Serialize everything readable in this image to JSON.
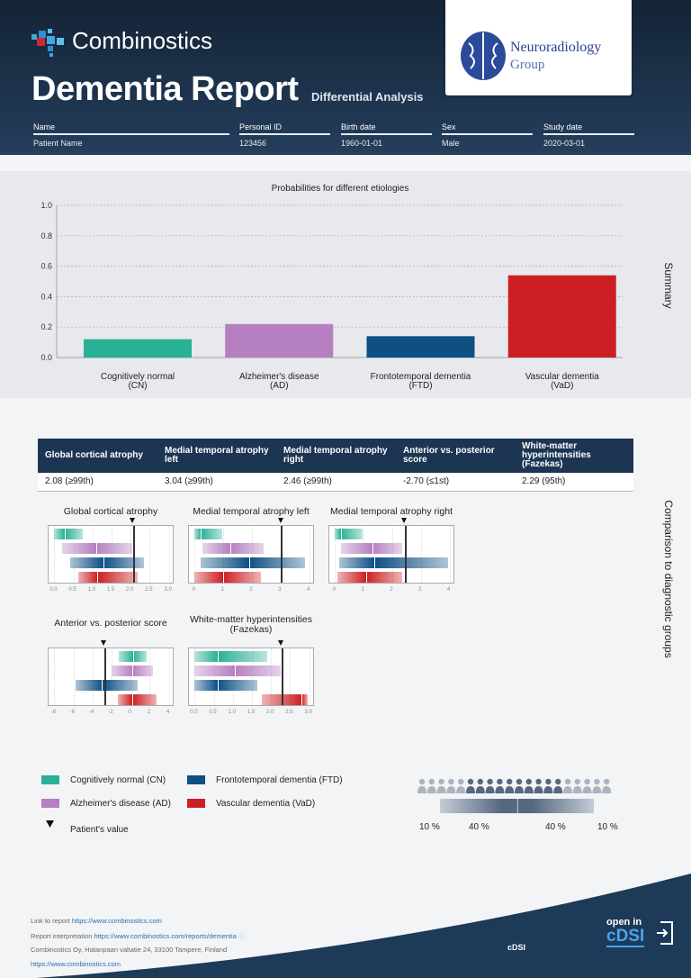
{
  "header": {
    "brand": "Combinostics",
    "title": "Dementia Report",
    "subtitle": "Differential Analysis",
    "partner": {
      "line1": "Neuroradiology",
      "line2": "Group"
    },
    "fields": [
      {
        "label": "Name",
        "value": "Patient Name"
      },
      {
        "label": "Personal ID",
        "value": "123456"
      },
      {
        "label": "Birth date",
        "value": "1960-01-01"
      },
      {
        "label": "Sex",
        "value": "Male"
      },
      {
        "label": "Study date",
        "value": "2020-03-01"
      }
    ]
  },
  "summary": {
    "side_label": "Summary"
  },
  "chart_data": [
    {
      "type": "bar",
      "title": "Probabilities for different etiologies",
      "categories": [
        "Cognitively normal\n(CN)",
        "Alzheimer's disease\n(AD)",
        "Frontotemporal dementia\n(FTD)",
        "Vascular dementia\n(VaD)"
      ],
      "values": [
        0.12,
        0.22,
        0.14,
        0.54
      ],
      "colors": [
        "#2ab094",
        "#b57fc1",
        "#0e4f84",
        "#cc1f24"
      ],
      "ylim": [
        0,
        1.0
      ],
      "yticks": [
        "0.0",
        "0.2",
        "0.4",
        "0.6",
        "0.8",
        "1.0"
      ],
      "grid": true
    }
  ],
  "comparison": {
    "side_label": "Comparison to diagnostic groups",
    "table": {
      "headers": [
        "Global cortical atrophy",
        "Medial temporal atrophy left",
        "Medial temporal atrophy right",
        "Anterior vs. posterior score",
        "White-matter hyperintensities (Fazekas)"
      ],
      "values": [
        "2.08 (≥99th)",
        "3.04 (≥99th)",
        "2.46 (≥99th)",
        "-2.70 (≤1st)",
        "2.29 (95th)"
      ]
    },
    "panels": [
      {
        "title": "Global cortical atrophy",
        "patient": 2.08,
        "xlim": [
          -0.15,
          3.15
        ],
        "ticks": [
          "0.0",
          "0.5",
          "1.0",
          "1.5",
          "2.0",
          "2.5",
          "3.0"
        ],
        "groups": [
          {
            "low": 0,
            "high": 0.75,
            "median": 0.27
          },
          {
            "low": 0.2,
            "high": 2.05,
            "median": 1.1
          },
          {
            "low": 0.42,
            "high": 2.35,
            "median": 1.28
          },
          {
            "low": 0.63,
            "high": 2.18,
            "median": 1.13
          }
        ]
      },
      {
        "title": "Medial temporal atrophy left",
        "patient": 3.04,
        "xlim": [
          -0.2,
          4.2
        ],
        "ticks": [
          "0",
          "1",
          "2",
          "3",
          "4"
        ],
        "groups": [
          {
            "low": 0,
            "high": 0.95,
            "median": 0.22
          },
          {
            "low": 0.28,
            "high": 2.4,
            "median": 1.25
          },
          {
            "low": 0.22,
            "high": 3.85,
            "median": 1.9
          },
          {
            "low": 0,
            "high": 2.33,
            "median": 1.0
          }
        ]
      },
      {
        "title": "Medial temporal atrophy right",
        "patient": 2.46,
        "xlim": [
          -0.2,
          4.2
        ],
        "ticks": [
          "0",
          "1",
          "2",
          "3",
          "4"
        ],
        "groups": [
          {
            "low": 0,
            "high": 0.95,
            "median": 0.2
          },
          {
            "low": 0.2,
            "high": 2.35,
            "median": 1.3
          },
          {
            "low": 0.15,
            "high": 3.95,
            "median": 1.38
          },
          {
            "low": 0.08,
            "high": 2.35,
            "median": 1.08
          }
        ]
      },
      {
        "title": "Anterior vs. posterior score",
        "patient": -2.7,
        "xlim": [
          -8.6,
          4.6
        ],
        "ticks": [
          "-8",
          "-6",
          "-4",
          "-2",
          "0",
          "2",
          "4"
        ],
        "groups": [
          {
            "low": -1.2,
            "high": 1.7,
            "median": 0.3
          },
          {
            "low": -2.0,
            "high": 2.3,
            "median": 0.2
          },
          {
            "low": -5.8,
            "high": 0.7,
            "median": -3.0
          },
          {
            "low": -1.3,
            "high": 2.7,
            "median": 0.2
          }
        ]
      },
      {
        "title": "White-matter hyperintensities\n(Fazekas)",
        "patient": 2.29,
        "xlim": [
          -0.15,
          3.15
        ],
        "ticks": [
          "0.0",
          "0.5",
          "1.0",
          "1.5",
          "2.0",
          "2.5",
          "3.0"
        ],
        "groups": [
          {
            "low": 0,
            "high": 1.9,
            "median": 0.6
          },
          {
            "low": 0,
            "high": 2.25,
            "median": 1.05
          },
          {
            "low": 0,
            "high": 1.65,
            "median": 0.6
          },
          {
            "low": 1.75,
            "high": 2.95,
            "median": 2.8
          }
        ]
      }
    ],
    "legend": [
      {
        "label": "Cognitively normal (CN)",
        "color": "#2ab094"
      },
      {
        "label": "Alzheimer's disease (AD)",
        "color": "#b57fc1"
      },
      {
        "label": "Frontotemporal dementia (FTD)",
        "color": "#0e4f84"
      },
      {
        "label": "Vascular dementia (VaD)",
        "color": "#cc1f24"
      }
    ],
    "patient_label": "Patient's value",
    "distribution_labels": [
      "10 %",
      "40 %",
      "40 %",
      "10 %"
    ]
  },
  "footer": {
    "link_label": "Link to report",
    "link_url": "https://www.combinostics.com",
    "interp_label": "Report interpretation",
    "interp_url": "https://www.combinostics.com/reports/dementia",
    "address": "Combinostics Oy, Hatanpaan valtatie 24, 33100 Tampere, Finland",
    "site": "https://www.combinostics.com",
    "cdsi": "cDSI",
    "open_in": "open in",
    "open_brand": "cDSI"
  }
}
